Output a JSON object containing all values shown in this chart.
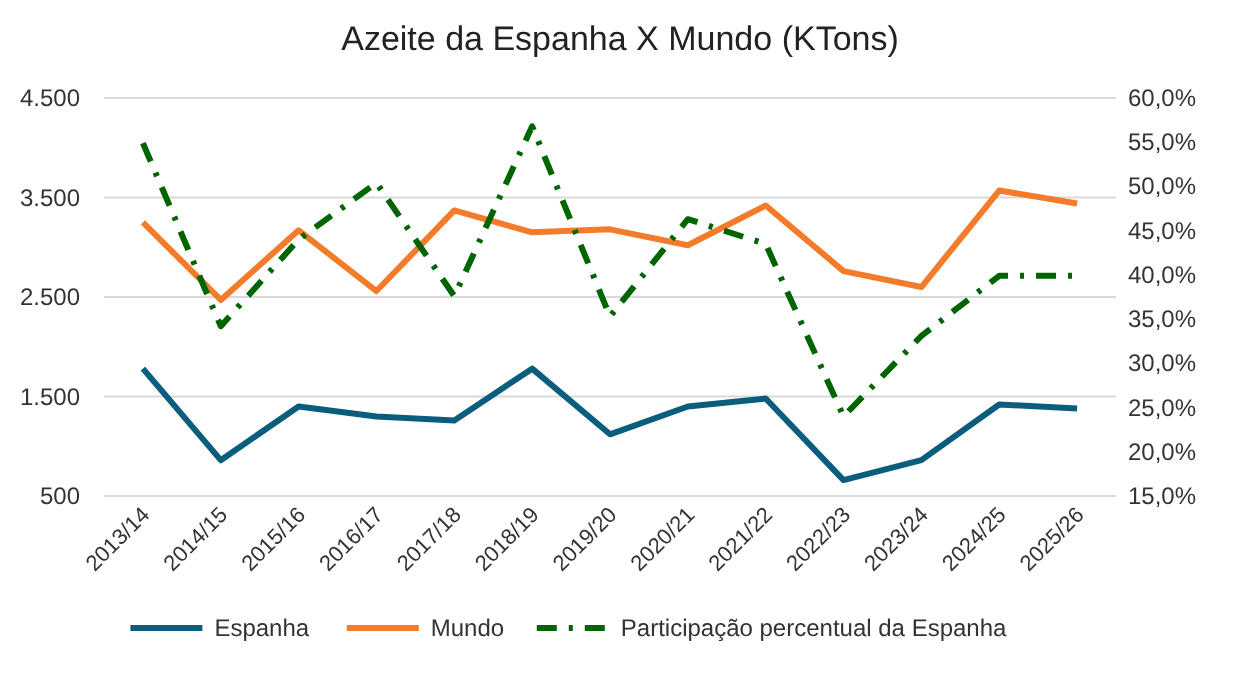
{
  "chart_data": {
    "type": "line",
    "title": "Azeite da Espanha X Mundo (KTons)",
    "categories": [
      "2013/14",
      "2014/15",
      "2015/16",
      "2016/17",
      "2017/18",
      "2018/19",
      "2019/20",
      "2020/21",
      "2021/22",
      "2022/23",
      "2023/24",
      "2024/25",
      "2025/26"
    ],
    "series": [
      {
        "name": "Espanha",
        "color": "#0b5d7e",
        "line_style": "solid",
        "values": [
          1780,
          860,
          1400,
          1300,
          1260,
          1780,
          1120,
          1400,
          1480,
          660,
          860,
          1420,
          1380
        ]
      },
      {
        "name": "Mundo",
        "color": "#f47b2a",
        "line_style": "solid",
        "values": [
          3250,
          2470,
          3170,
          2560,
          3370,
          3150,
          3180,
          3020,
          3420,
          2760,
          2600,
          3570,
          3440
        ]
      },
      {
        "name": "Participação percentual da Espanha",
        "color": "#006400",
        "line_style": "dashdot",
        "axis": "y2",
        "values": [
          54.9,
          34.2,
          44.0,
          50.4,
          37.6,
          56.8,
          35.3,
          46.3,
          43.5,
          24.0,
          33.1,
          39.9,
          39.9
        ]
      }
    ],
    "ylim": [
      500,
      4500
    ],
    "yticks": [
      {
        "value": 500,
        "label": "500"
      },
      {
        "value": 1500,
        "label": "1.500"
      },
      {
        "value": 2500,
        "label": "2.500"
      },
      {
        "value": 3500,
        "label": "3.500"
      },
      {
        "value": 4500,
        "label": "4.500"
      }
    ],
    "y2lim": [
      15,
      60
    ],
    "y2ticks": [
      {
        "value": 15,
        "label": "15,0%"
      },
      {
        "value": 20,
        "label": "20,0%"
      },
      {
        "value": 25,
        "label": "25,0%"
      },
      {
        "value": 30,
        "label": "30,0%"
      },
      {
        "value": 35,
        "label": "35,0%"
      },
      {
        "value": 40,
        "label": "40,0%"
      },
      {
        "value": 45,
        "label": "45,0%"
      },
      {
        "value": 50,
        "label": "50,0%"
      },
      {
        "value": 55,
        "label": "55,0%"
      },
      {
        "value": 60,
        "label": "60,0%"
      }
    ],
    "grid": "y",
    "legend": "bottom",
    "marker": "none"
  }
}
